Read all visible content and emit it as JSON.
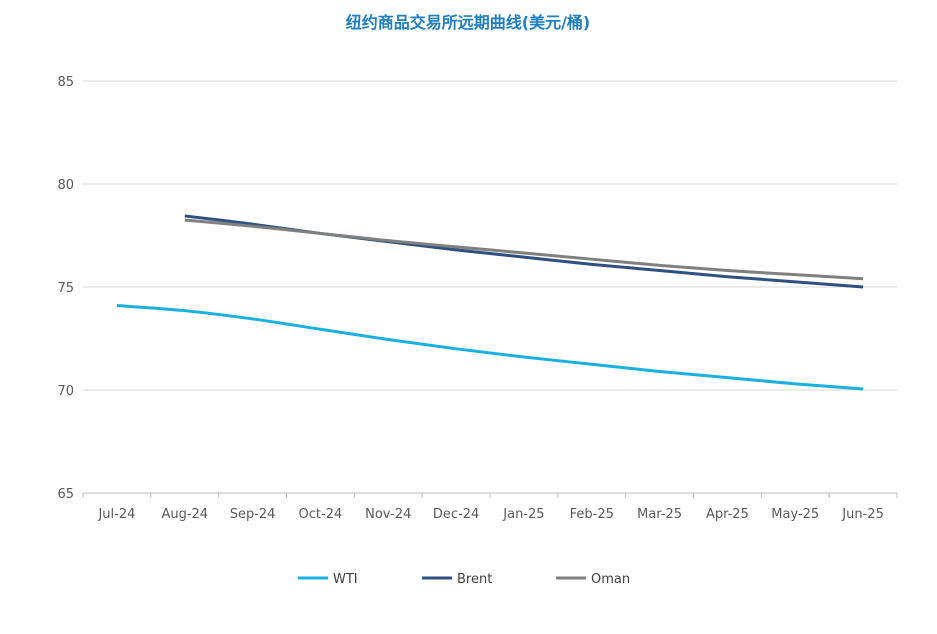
{
  "chart_data": {
    "type": "line",
    "title": "纽约商品交易所远期曲线(美元/桶)",
    "xlabel": "",
    "ylabel": "",
    "categories": [
      "Jul-24",
      "Aug-24",
      "Sep-24",
      "Oct-24",
      "Nov-24",
      "Dec-24",
      "Jan-25",
      "Feb-25",
      "Mar-25",
      "Apr-25",
      "May-25",
      "Jun-25"
    ],
    "ylim": [
      65,
      85
    ],
    "yticks": [
      65,
      70,
      75,
      80,
      85
    ],
    "grid": true,
    "legend_position": "bottom",
    "series": [
      {
        "name": "WTI",
        "color": "#1ab0e0",
        "values": [
          74.1,
          73.85,
          73.45,
          72.95,
          72.45,
          72.0,
          71.6,
          71.25,
          70.9,
          70.6,
          70.3,
          70.05
        ]
      },
      {
        "name": "Brent",
        "color": "#2d5180",
        "values": [
          null,
          78.45,
          78.05,
          77.6,
          77.2,
          76.8,
          76.45,
          76.1,
          75.8,
          75.5,
          75.25,
          75.0
        ]
      },
      {
        "name": "Oman",
        "color": "#808080",
        "values": [
          null,
          78.25,
          77.95,
          77.6,
          77.25,
          76.95,
          76.65,
          76.35,
          76.05,
          75.8,
          75.6,
          75.4
        ]
      }
    ]
  }
}
